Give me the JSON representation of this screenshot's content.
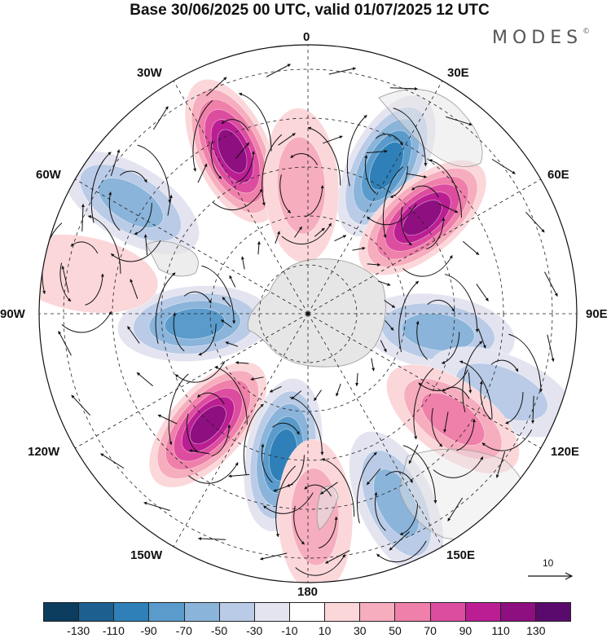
{
  "title": "Base 30/06/2025 00 UTC, valid 01/07/2025 12 UTC",
  "logo": {
    "text": "MODES",
    "mark": "©"
  },
  "longitude_labels": {
    "lon_0": "0",
    "lon_30e": "30E",
    "lon_60e": "60E",
    "lon_90e": "90E",
    "lon_120e": "120E",
    "lon_150e": "150E",
    "lon_180": "180",
    "lon_150w": "150W",
    "lon_120w": "120W",
    "lon_90w": "90W",
    "lon_60w": "60W",
    "lon_30w": "30W"
  },
  "projection": "south-polar-stereographic",
  "reference_vector": {
    "label": "10"
  },
  "colorbar": {
    "colors": [
      "#0c3c5e",
      "#1d5f8e",
      "#2f80b8",
      "#5a9bcb",
      "#8bb4da",
      "#b9cbe6",
      "#e4e4f1",
      "#ffffff",
      "#fbd7da",
      "#f6adbd",
      "#ef80a9",
      "#dd4d9f",
      "#bb1e93",
      "#8e0f7f",
      "#5a0a6c"
    ],
    "tick_labels": [
      "-130",
      "-110",
      "-90",
      "-70",
      "-50",
      "-30",
      "-10",
      "10",
      "30",
      "50",
      "70",
      "90",
      "110",
      "130"
    ]
  },
  "anomaly_centers": [
    {
      "lon": 28,
      "lat_from_pole": 56,
      "value": -100
    },
    {
      "lon": -25,
      "lat_from_pole": 60,
      "value": 120
    },
    {
      "lon": 50,
      "lat_from_pole": 50,
      "value": 110
    },
    {
      "lon": -58,
      "lat_from_pole": 70,
      "value": -50
    },
    {
      "lon": 98,
      "lat_from_pole": 44,
      "value": -50
    },
    {
      "lon": -95,
      "lat_from_pole": 38,
      "value": -80
    },
    {
      "lon": -138,
      "lat_from_pole": 50,
      "value": 120
    },
    {
      "lon": 112,
      "lat_from_pole": 70,
      "value": -40
    },
    {
      "lon": 126,
      "lat_from_pole": 60,
      "value": 60
    },
    {
      "lon": -170,
      "lat_from_pole": 48,
      "value": -90
    },
    {
      "lon": 155,
      "lat_from_pole": 70,
      "value": -50
    },
    {
      "lon": 178,
      "lat_from_pole": 68,
      "value": 40
    },
    {
      "lon": -80,
      "lat_from_pole": 77,
      "value": 25
    },
    {
      "lon": -3,
      "lat_from_pole": 43,
      "value": 35
    }
  ]
}
